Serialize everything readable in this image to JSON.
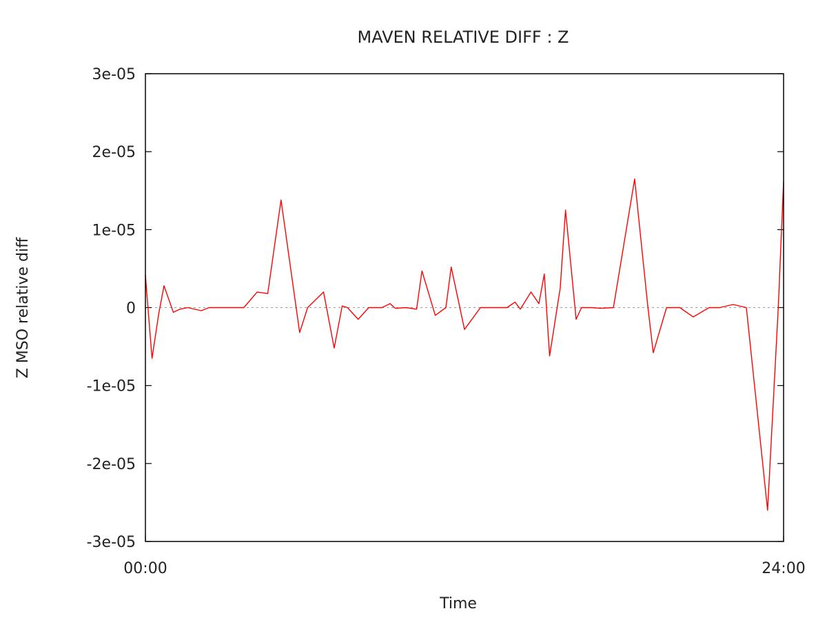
{
  "chart_data": {
    "type": "line",
    "title": "MAVEN RELATIVE DIFF : Z",
    "xlabel": "Time",
    "ylabel": "Z MSO relative diff",
    "x_unit": "hours",
    "xlim": [
      0,
      24
    ],
    "ylim": [
      -3e-05,
      3e-05
    ],
    "x_ticks": [
      {
        "value": 0,
        "label": "00:00"
      },
      {
        "value": 24,
        "label": "24:00"
      }
    ],
    "y_ticks": [
      {
        "value": 3e-05,
        "label": "3e-05"
      },
      {
        "value": 2e-05,
        "label": "2e-05"
      },
      {
        "value": 1e-05,
        "label": "1e-05"
      },
      {
        "value": 0,
        "label": "0"
      },
      {
        "value": -1e-05,
        "label": "-1e-05"
      },
      {
        "value": -2e-05,
        "label": "-2e-05"
      },
      {
        "value": -3e-05,
        "label": "-3e-05"
      }
    ],
    "zero_line": true,
    "grid": false,
    "series": [
      {
        "color": "#ff0000",
        "x": [
          0,
          0.05,
          0.25,
          0.5,
          0.7,
          1.05,
          1.3,
          1.6,
          2.1,
          2.4,
          2.9,
          3.4,
          3.7,
          4.2,
          4.6,
          5.1,
          5.8,
          6.1,
          6.7,
          7.1,
          7.4,
          7.6,
          8.0,
          8.4,
          8.7,
          8.9,
          9.2,
          9.4,
          9.8,
          10.2,
          10.4,
          10.9,
          11.3,
          11.5,
          12.0,
          12.6,
          13.1,
          13.6,
          13.9,
          14.1,
          14.5,
          14.8,
          15.0,
          15.2,
          15.6,
          15.8,
          16.2,
          16.4,
          16.8,
          17.1,
          17.6,
          18.4,
          18.9,
          19.1,
          19.6,
          20.1,
          20.6,
          21.2,
          21.6,
          22.1,
          22.6,
          23.4,
          23.8,
          24.0
        ],
        "y": [
          4.2e-06,
          2e-06,
          -6.5e-06,
          -8e-07,
          2.8e-06,
          -6e-07,
          -2e-07,
          0,
          -4e-07,
          0,
          0,
          0,
          0,
          2e-06,
          1.8e-06,
          1.38e-05,
          -3.2e-06,
          0,
          2e-06,
          -5.2e-06,
          2e-07,
          0,
          -1.5e-06,
          0,
          0,
          0,
          5e-07,
          -1e-07,
          0,
          -2e-07,
          4.7e-06,
          -1e-06,
          0,
          5.2e-06,
          -2.8e-06,
          0,
          0,
          0,
          7e-07,
          -2e-07,
          2e-06,
          5e-07,
          4.3e-06,
          -6.2e-06,
          2.5e-06,
          1.25e-05,
          -1.5e-06,
          0,
          0,
          -1e-07,
          0,
          1.65e-05,
          0,
          -5.8e-06,
          0,
          0,
          -1.2e-06,
          0,
          0,
          4e-07,
          0,
          -2.6e-05,
          0,
          1.62e-05
        ]
      }
    ]
  }
}
